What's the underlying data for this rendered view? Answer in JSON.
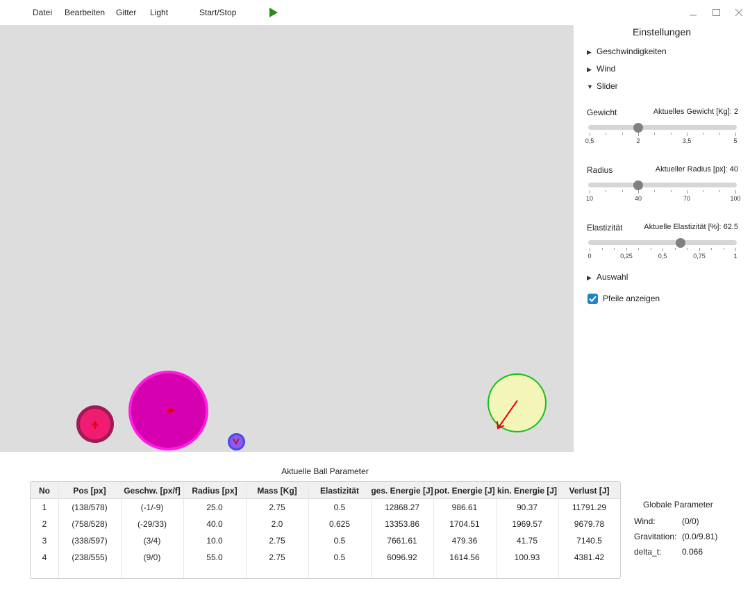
{
  "menu": {
    "items": [
      "Datei",
      "Bearbeiten",
      "Gitter",
      "Light"
    ],
    "start_stop": "Start/Stop",
    "play_icon": "play-icon",
    "window_controls": [
      "minimize-icon",
      "maximize-icon",
      "close-icon"
    ]
  },
  "settings": {
    "title": "Einstellungen",
    "sections": {
      "geschwindigkeiten": "Geschwindigkeiten",
      "wind": "Wind",
      "slider": "Slider",
      "auswahl": "Auswahl"
    },
    "sliders": {
      "gewicht": {
        "label": "Gewicht",
        "current": "Aktuelles Gewicht [Kg]: 2",
        "min": 0.5,
        "max": 5,
        "value": 2,
        "ticks": [
          "0,5",
          "2",
          "3,5",
          "5"
        ]
      },
      "radius": {
        "label": "Radius",
        "current": "Aktueller Radius [px]: 40",
        "min": 10,
        "max": 100,
        "value": 40,
        "ticks": [
          "10",
          "40",
          "70",
          "100"
        ]
      },
      "elastizitaet": {
        "label": "Elastizität",
        "current": "Aktuelle Elastizität [%]: 62.5",
        "min": 0,
        "max": 1,
        "value": 0.625,
        "ticks": [
          "0",
          "0,25",
          "0,5",
          "0,75",
          "1"
        ]
      }
    },
    "checkbox": {
      "label": "Pfeile anzeigen",
      "checked": true
    }
  },
  "colors": {
    "canvas": "#dddddd",
    "ball_pink_fill": "#f01c72",
    "ball_pink_border": "#a01a58",
    "ball_magenta_fill": "#d600b0",
    "ball_magenta_border": "#ff1ee0",
    "ball_blue_fill": "#8a5cf0",
    "ball_blue_border": "#4a4ae8",
    "ball_yellow_fill": "#f4f5b9",
    "ball_yellow_border": "#17c117",
    "arrow": "#e80000",
    "play": "#2a8a1a",
    "accent": "#1a86c6"
  },
  "table": {
    "caption": "Aktuelle Ball Parameter",
    "headers": [
      "No",
      "Pos [px]",
      "Geschw. [px/f]",
      "Radius [px]",
      "Mass [Kg]",
      "Elastizität",
      "ges. Energie [J]",
      "pot. Energie [J]",
      "kin. Energie [J]",
      "Verlust [J]"
    ],
    "rows": [
      [
        "1",
        "(138/578)",
        "(-1/-9)",
        "25.0",
        "2.75",
        "0.5",
        "12868.27",
        "986.61",
        "90.37",
        "11791.29"
      ],
      [
        "2",
        "(758/528)",
        "(-29/33)",
        "40.0",
        "2.0",
        "0.625",
        "13353.86",
        "1704.51",
        "1969.57",
        "9679.78"
      ],
      [
        "3",
        "(338/597)",
        "(3/4)",
        "10.0",
        "2.75",
        "0.5",
        "7661.61",
        "479.36",
        "41.75",
        "7140.5"
      ],
      [
        "4",
        "(238/555)",
        "(9/0)",
        "55.0",
        "2.75",
        "0.5",
        "6096.92",
        "1614.56",
        "100.93",
        "4381.42"
      ]
    ]
  },
  "global": {
    "title": "Globale Parameter",
    "wind_label": "Wind:",
    "wind_value": "(0/0)",
    "grav_label": "Gravitation:",
    "grav_value": "(0.0/9.81)",
    "dt_label": "delta_t:",
    "dt_value": "0.066"
  }
}
